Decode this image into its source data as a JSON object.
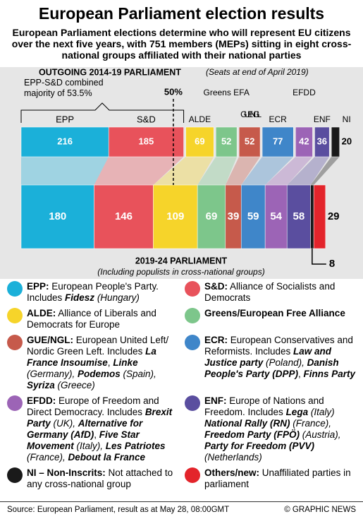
{
  "title": "European Parliament election results",
  "subtitle": "European Parliament elections determine who will represent EU citizens over the next five years, with 751 members (MEPs) sitting in eight cross-national groups affiliated with their national parties",
  "chart_data": {
    "type": "stacked-bar",
    "categories": [
      "OUTGOING 2014-19 PARLIAMENT",
      "2019-24 PARLIAMENT"
    ],
    "category_notes": [
      "(Seats at end of April 2019)",
      "(Including populists in cross-national groups)"
    ],
    "annotation": "EPP-S&D combined majority of 53.5%",
    "marker": {
      "value": 375.5,
      "label": "50%"
    },
    "series": [
      {
        "name": "EPP",
        "color": "#1bb0d9",
        "values": [
          216,
          180
        ]
      },
      {
        "name": "S&D",
        "color": "#e8525b",
        "values": [
          185,
          146
        ]
      },
      {
        "name": "ALDE",
        "color": "#f6d42a",
        "values": [
          69,
          109
        ]
      },
      {
        "name": "Greens EFA",
        "color": "#7dc68b",
        "values": [
          52,
          69
        ]
      },
      {
        "name": "GUE NGL",
        "color": "#c65a4b",
        "values": [
          52,
          39
        ]
      },
      {
        "name": "ECR",
        "color": "#3f86c9",
        "values": [
          77,
          59
        ]
      },
      {
        "name": "EFDD",
        "color": "#9c64b6",
        "values": [
          42,
          54
        ]
      },
      {
        "name": "ENF",
        "color": "#5a4e9f",
        "values": [
          36,
          58
        ]
      },
      {
        "name": "NI",
        "color": "#1a1a1a",
        "values": [
          20,
          8
        ]
      },
      {
        "color": "#e3242b",
        "values": [
          null,
          29
        ]
      }
    ]
  },
  "legend": [
    {
      "key": "EPP:",
      "color": "#1bb0d9",
      "text": [
        " European People's Party. Includes ",
        {
          "text": "Fidesz",
          "style": "bi"
        },
        {
          "text": " (Hungary)",
          "style": "i"
        }
      ]
    },
    {
      "key": "S&D:",
      "color": "#e8525b",
      "text": [
        " Alliance of Socialists and Democrats"
      ]
    },
    {
      "key": "ALDE:",
      "color": "#f6d42a",
      "text": [
        " Alliance of Liberals and Democrats for Europe"
      ]
    },
    {
      "key": "Greens/European Free Alliance",
      "color": "#7dc68b",
      "text": []
    },
    {
      "key": "GUE/NGL:",
      "color": "#c65a4b",
      "text": [
        " European United Left/ Nordic Green Left. Includes ",
        {
          "text": "La France Insoumise",
          "style": "bi"
        },
        ", ",
        {
          "text": "Linke",
          "style": "bi"
        },
        {
          "text": " (Germany), ",
          "style": "i"
        },
        {
          "text": "Podemos",
          "style": "bi"
        },
        {
          "text": " (Spain), ",
          "style": "i"
        },
        {
          "text": "Syriza",
          "style": "bi"
        },
        {
          "text": " (Greece)",
          "style": "i"
        }
      ]
    },
    {
      "key": "ECR:",
      "color": "#3f86c9",
      "text": [
        " European Conservatives and Reformists. Includes ",
        {
          "text": "Law and Justice party",
          "style": "bi"
        },
        {
          "text": " (Poland), ",
          "style": "i"
        },
        {
          "text": "Danish People's Party (DPP)",
          "style": "bi"
        },
        ", ",
        {
          "text": "Finns Party",
          "style": "bi"
        }
      ]
    },
    {
      "key": "EFDD:",
      "color": "#9c64b6",
      "text": [
        " Europe of Freedom and Direct Democracy. Includes ",
        {
          "text": "Brexit Party",
          "style": "bi"
        },
        {
          "text": " (UK), ",
          "style": "i"
        },
        {
          "text": "Alternative for Germany (AfD)",
          "style": "bi"
        },
        ", ",
        {
          "text": "Five Star Movement",
          "style": "bi"
        },
        {
          "text": " (Italy), ",
          "style": "i"
        },
        {
          "text": "Les Patriotes",
          "style": "bi"
        },
        {
          "text": " (France), ",
          "style": "i"
        },
        {
          "text": "Debout la France",
          "style": "bi"
        }
      ]
    },
    {
      "key": "ENF:",
      "color": "#5a4e9f",
      "text": [
        " Europe of Nations and Freedom. Includes ",
        {
          "text": "Lega",
          "style": "bi"
        },
        {
          "text": " (Italy) ",
          "style": "i"
        },
        {
          "text": "National Rally (RN)",
          "style": "bi"
        },
        {
          "text": " (France), ",
          "style": "i"
        },
        {
          "text": "Freedom Party (FPÖ)",
          "style": "bi"
        },
        {
          "text": " (Austria), ",
          "style": "i"
        },
        {
          "text": "Party for Freedom (PVV)",
          "style": "bi"
        },
        {
          "text": " (Netherlands)",
          "style": "i"
        }
      ]
    },
    {
      "key": "NI – Non-Inscrits:",
      "color": "#1a1a1a",
      "text": [
        " Not attached to any cross-national group"
      ]
    },
    {
      "key": "Others/new:",
      "color": "#e3242b",
      "text": [
        " Unaffiliated parties in parliament"
      ]
    }
  ],
  "source": "Source: European Parliament, result as at May 28, 08:00GMT",
  "credit": "© GRAPHIC NEWS"
}
